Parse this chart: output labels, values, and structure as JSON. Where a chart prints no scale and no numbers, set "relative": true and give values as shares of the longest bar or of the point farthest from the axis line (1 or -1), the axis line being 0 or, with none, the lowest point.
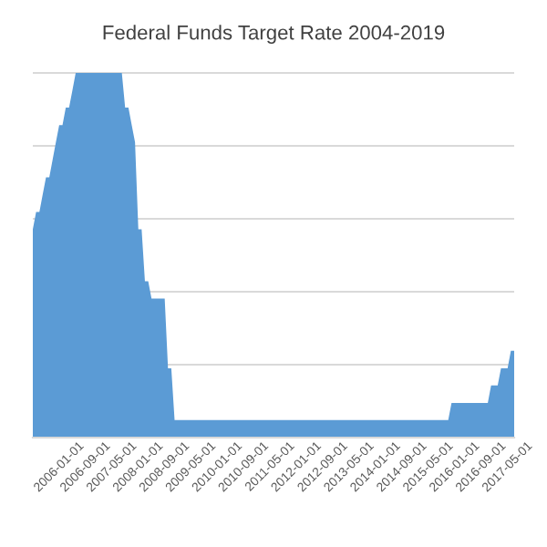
{
  "chart_data": {
    "type": "area",
    "title": "Federal Funds Target Rate 2004-2019",
    "relative": true,
    "color": "#5b9bd5",
    "grid": "y",
    "categories": [
      null,
      null,
      null,
      null,
      null,
      null,
      null,
      null,
      "2006-01-01",
      null,
      null,
      null,
      null,
      null,
      null,
      null,
      "2006-09-01",
      null,
      null,
      null,
      null,
      null,
      null,
      null,
      "2007-05-01",
      null,
      null,
      null,
      null,
      null,
      null,
      null,
      "2008-01-01",
      null,
      null,
      null,
      null,
      null,
      null,
      null,
      "2008-09-01",
      null,
      null,
      null,
      null,
      null,
      null,
      null,
      "2009-05-01",
      null,
      null,
      null,
      null,
      null,
      null,
      null,
      "2010-01-01",
      null,
      null,
      null,
      null,
      null,
      null,
      null,
      "2010-09-01",
      null,
      null,
      null,
      null,
      null,
      null,
      null,
      "2011-05-01",
      null,
      null,
      null,
      null,
      null,
      null,
      null,
      "2012-01-01",
      null,
      null,
      null,
      null,
      null,
      null,
      null,
      "2012-09-01",
      null,
      null,
      null,
      null,
      null,
      null,
      null,
      "2013-05-01",
      null,
      null,
      null,
      null,
      null,
      null,
      null,
      "2014-01-01",
      null,
      null,
      null,
      null,
      null,
      null,
      null,
      "2014-09-01",
      null,
      null,
      null,
      null,
      null,
      null,
      null,
      "2015-05-01",
      null,
      null,
      null,
      null,
      null,
      null,
      null,
      "2016-01-01",
      null,
      null,
      null,
      null,
      null,
      null,
      null,
      "2016-09-01",
      null,
      null,
      null,
      null,
      null,
      null,
      null,
      "2017-05-01",
      null,
      null
    ],
    "values": [
      0.571,
      0.619,
      0.619,
      0.667,
      0.714,
      0.714,
      0.762,
      0.81,
      0.857,
      0.857,
      0.905,
      0.905,
      0.952,
      1,
      1,
      1,
      1,
      1,
      1,
      1,
      1,
      1,
      1,
      1,
      1,
      1,
      1,
      1,
      0.905,
      0.905,
      0.857,
      0.81,
      0.571,
      0.571,
      0.429,
      0.429,
      0.381,
      0.381,
      0.381,
      0.381,
      0.381,
      0.19,
      0.19,
      0.048,
      0.048,
      0.048,
      0.048,
      0.048,
      0.048,
      0.048,
      0.048,
      0.048,
      0.048,
      0.048,
      0.048,
      0.048,
      0.048,
      0.048,
      0.048,
      0.048,
      0.048,
      0.048,
      0.048,
      0.048,
      0.048,
      0.048,
      0.048,
      0.048,
      0.048,
      0.048,
      0.048,
      0.048,
      0.048,
      0.048,
      0.048,
      0.048,
      0.048,
      0.048,
      0.048,
      0.048,
      0.048,
      0.048,
      0.048,
      0.048,
      0.048,
      0.048,
      0.048,
      0.048,
      0.048,
      0.048,
      0.048,
      0.048,
      0.048,
      0.048,
      0.048,
      0.048,
      0.048,
      0.048,
      0.048,
      0.048,
      0.048,
      0.048,
      0.048,
      0.048,
      0.048,
      0.048,
      0.048,
      0.048,
      0.048,
      0.048,
      0.048,
      0.048,
      0.048,
      0.048,
      0.048,
      0.048,
      0.048,
      0.048,
      0.048,
      0.048,
      0.048,
      0.048,
      0.048,
      0.048,
      0.048,
      0.048,
      0.048,
      0.095,
      0.095,
      0.095,
      0.095,
      0.095,
      0.095,
      0.095,
      0.095,
      0.095,
      0.095,
      0.095,
      0.095,
      0.143,
      0.143,
      0.143,
      0.19,
      0.19,
      0.19,
      0.238,
      0.238
    ]
  }
}
